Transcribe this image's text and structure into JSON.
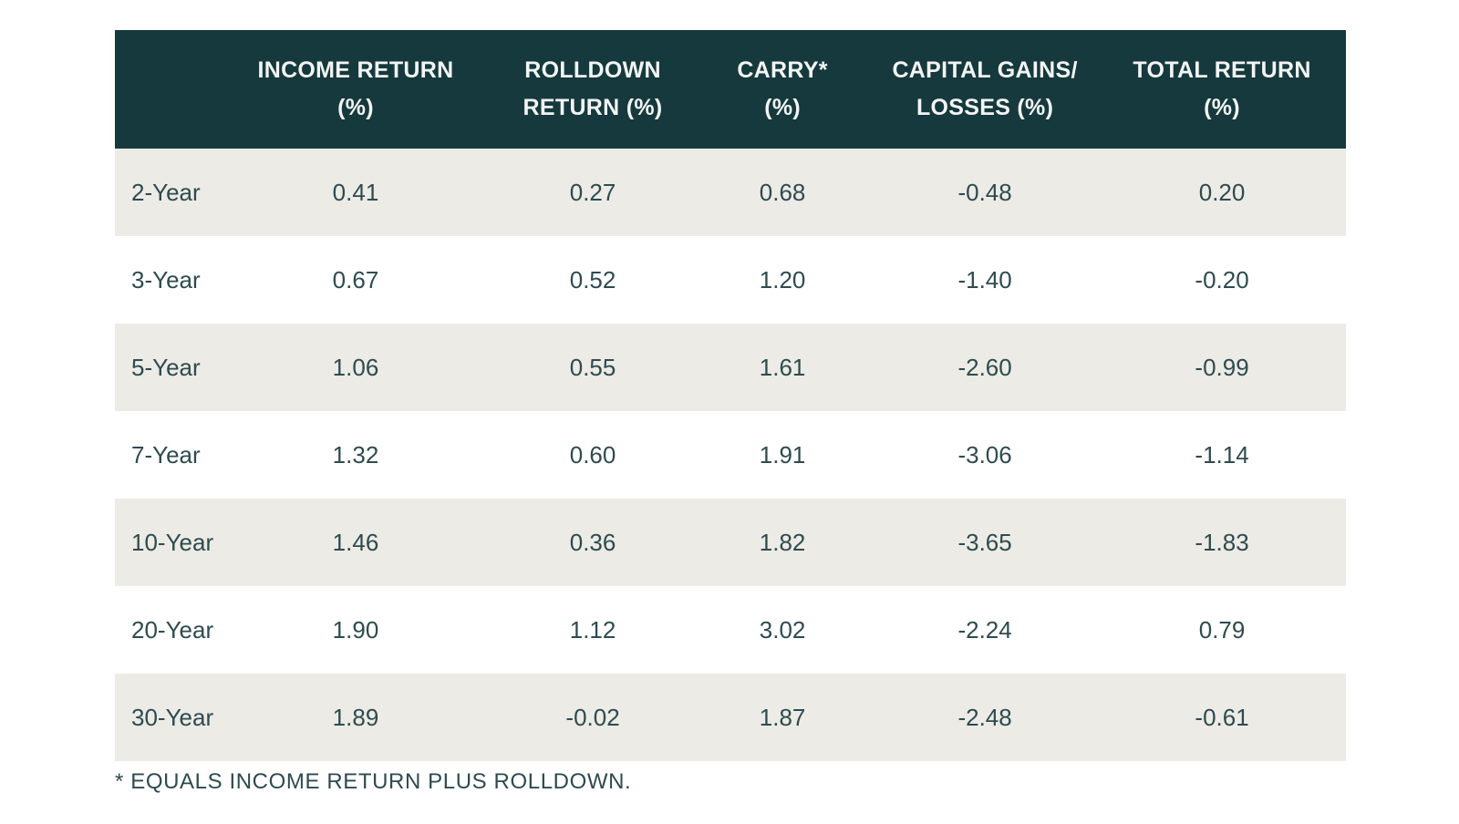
{
  "chart_data": {
    "type": "table",
    "columns": [
      "",
      "INCOME RETURN (%)",
      "ROLLDOWN RETURN (%)",
      "CARRY* (%)",
      "CAPITAL GAINS/ LOSSES (%)",
      "TOTAL RETURN (%)"
    ],
    "rows": [
      [
        "2-Year",
        0.41,
        0.27,
        0.68,
        -0.48,
        0.2
      ],
      [
        "3-Year",
        0.67,
        0.52,
        1.2,
        -1.4,
        -0.2
      ],
      [
        "5-Year",
        1.06,
        0.55,
        1.61,
        -2.6,
        -0.99
      ],
      [
        "7-Year",
        1.32,
        0.6,
        1.91,
        -3.06,
        -1.14
      ],
      [
        "10-Year",
        1.46,
        0.36,
        1.82,
        -3.65,
        -1.83
      ],
      [
        "20-Year",
        1.9,
        1.12,
        3.02,
        -2.24,
        0.79
      ],
      [
        "30-Year",
        1.89,
        -0.02,
        1.87,
        -2.48,
        -0.61
      ]
    ],
    "footnote": "* EQUALS INCOME RETURN PLUS ROLLDOWN.",
    "legend_position": "none",
    "grid": false
  },
  "table": {
    "headers": [
      {
        "line1": "INCOME RETURN",
        "line2": "(%)"
      },
      {
        "line1": "ROLLDOWN",
        "line2": "RETURN (%)"
      },
      {
        "line1": "CARRY*",
        "line2": "(%)"
      },
      {
        "line1": "CAPITAL GAINS/",
        "line2": "LOSSES (%)"
      },
      {
        "line1": "TOTAL RETURN",
        "line2": "(%)"
      }
    ],
    "rows": [
      {
        "label": "2-Year",
        "values": [
          "0.41",
          "0.27",
          "0.68",
          "-0.48",
          "0.20"
        ]
      },
      {
        "label": "3-Year",
        "values": [
          "0.67",
          "0.52",
          "1.20",
          "-1.40",
          "-0.20"
        ]
      },
      {
        "label": "5-Year",
        "values": [
          "1.06",
          "0.55",
          "1.61",
          "-2.60",
          "-0.99"
        ]
      },
      {
        "label": "7-Year",
        "values": [
          "1.32",
          "0.60",
          "1.91",
          "-3.06",
          "-1.14"
        ]
      },
      {
        "label": "10-Year",
        "values": [
          "1.46",
          "0.36",
          "1.82",
          "-3.65",
          "-1.83"
        ]
      },
      {
        "label": "20-Year",
        "values": [
          "1.90",
          "1.12",
          "3.02",
          "-2.24",
          "0.79"
        ]
      },
      {
        "label": "30-Year",
        "values": [
          "1.89",
          "-0.02",
          "1.87",
          "-2.48",
          "-0.61"
        ]
      }
    ]
  },
  "footnote": "* EQUALS INCOME RETURN PLUS ROLLDOWN.",
  "colors": {
    "header_bg": "#16393D",
    "header_text": "#F2F5F5",
    "row_alt_bg": "#ECEBE5",
    "row_bg": "#FFFFFF",
    "body_text": "#2E4B50",
    "page_bg": "#FFFFFF"
  }
}
